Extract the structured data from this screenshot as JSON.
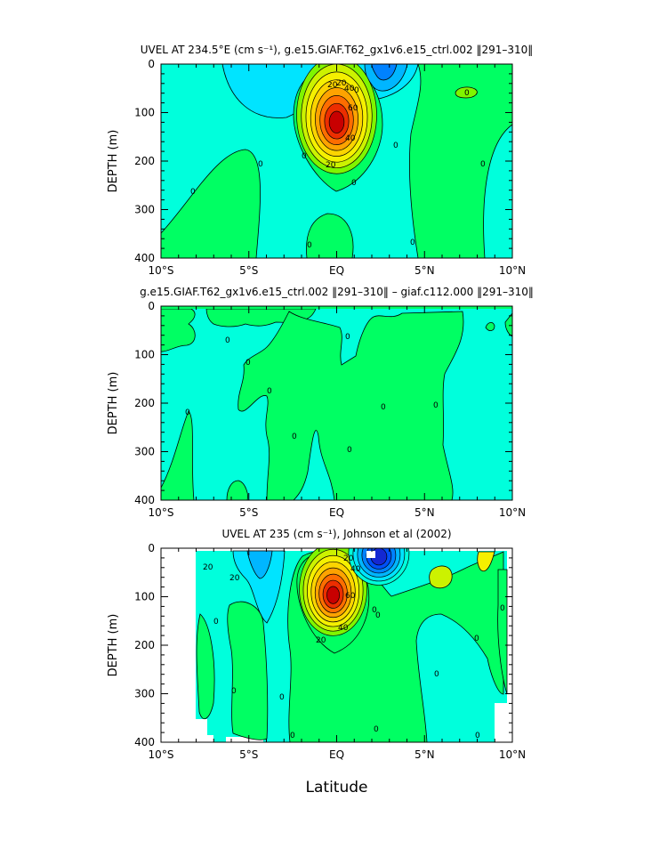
{
  "chart_data": [
    {
      "type": "contour",
      "title": "UVEL AT 234.5°E (cm s⁻¹), g.e15.GIAF.T62_gx1v6.e15_ctrl.002 ‖291–310‖",
      "ylabel": "DEPTH (m)",
      "xlabel": "",
      "x_ticks": [
        "10°S",
        "5°S",
        "EQ",
        "5°N",
        "10°N"
      ],
      "y_ticks": [
        "0",
        "100",
        "200",
        "300",
        "400"
      ],
      "xlim": [
        -10,
        10
      ],
      "ylim": [
        400,
        0
      ],
      "contour_interval": 10,
      "contour_labels": [
        "20",
        "0",
        "20",
        "40",
        "60",
        "40",
        "20",
        "0",
        "0",
        "0",
        "0",
        "0",
        "0",
        "0",
        "0",
        "0"
      ],
      "jets": [
        {
          "lat": 0,
          "depth": 105,
          "peak": 90,
          "kind": "eastward undercurrent"
        },
        {
          "lat": 2.3,
          "depth": 0,
          "peak": -40,
          "kind": "westward surface current"
        },
        {
          "lat": -4,
          "depth": 10,
          "peak": -8
        }
      ]
    },
    {
      "type": "contour",
      "title": "g.e15.GIAF.T62_gx1v6.e15_ctrl.002 ‖291–310‖ – giaf.c112.000 ‖291–310‖",
      "ylabel": "DEPTH (m)",
      "xlabel": "",
      "x_ticks": [
        "10°S",
        "5°S",
        "EQ",
        "5°N",
        "10°N"
      ],
      "y_ticks": [
        "0",
        "100",
        "200",
        "300",
        "400"
      ],
      "xlim": [
        -10,
        10
      ],
      "ylim": [
        400,
        0
      ],
      "contour_interval": 10,
      "contour_labels": [
        "0",
        "0",
        "0",
        "0",
        "0",
        "0",
        "0",
        "0",
        "0"
      ]
    },
    {
      "type": "contour",
      "title": "UVEL AT 235 (cm s⁻¹), Johnson et al (2002)",
      "ylabel": "DEPTH (m)",
      "xlabel": "Latitude",
      "x_ticks": [
        "10°S",
        "5°S",
        "EQ",
        "5°N",
        "10°N"
      ],
      "y_ticks": [
        "0",
        "100",
        "200",
        "300",
        "400"
      ],
      "xlim": [
        -10,
        10
      ],
      "ylim": [
        400,
        0
      ],
      "contour_interval": 10,
      "contour_labels": [
        "20",
        "20",
        "0",
        "0",
        "20",
        "40",
        "60",
        "40",
        "20",
        "0",
        "0",
        "0",
        "0",
        "0",
        "0",
        "0",
        "0",
        "0"
      ],
      "jets": [
        {
          "lat": -0.2,
          "depth": 85,
          "peak": 90,
          "kind": "eastward undercurrent"
        },
        {
          "lat": 2.4,
          "depth": 10,
          "peak": -60,
          "kind": "westward surface current"
        },
        {
          "lat": 7.5,
          "depth": 50,
          "peak": 30,
          "kind": "countercurrent"
        }
      ]
    }
  ],
  "colors": {
    "positive_scale": [
      "#00ff63",
      "#7ff500",
      "#ccf200",
      "#f5f000",
      "#fcd400",
      "#fea300",
      "#fe6d00",
      "#ec2e00",
      "#c80000",
      "#9f0000"
    ],
    "negative_scale": [
      "#00ffdc",
      "#00e4ff",
      "#00b6ff",
      "#0082ff",
      "#0050f8",
      "#1428d2"
    ]
  }
}
